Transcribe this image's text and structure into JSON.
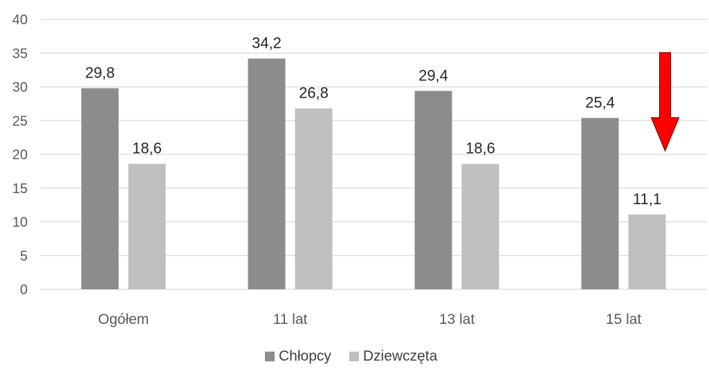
{
  "chart_data": {
    "type": "bar",
    "categories": [
      "Ogółem",
      "11 lat",
      "13 lat",
      "15 lat"
    ],
    "series": [
      {
        "name": "Chłopcy",
        "values": [
          29.8,
          34.2,
          29.4,
          25.4
        ],
        "labels": [
          "29,8",
          "34,2",
          "29,4",
          "25,4"
        ],
        "color": "#8c8c8c"
      },
      {
        "name": "Dziewczęta",
        "values": [
          18.6,
          26.8,
          18.6,
          11.1
        ],
        "labels": [
          "18,6",
          "26,8",
          "18,6",
          "11,1"
        ],
        "color": "#bfbfbf"
      }
    ],
    "ylim": [
      0,
      40
    ],
    "yticks": [
      0,
      5,
      10,
      15,
      20,
      25,
      30,
      35,
      40
    ],
    "grid": true,
    "legend": "bottom",
    "annotation": {
      "type": "arrow",
      "direction": "down",
      "category": "15 lat",
      "color": "#ff0000"
    }
  }
}
